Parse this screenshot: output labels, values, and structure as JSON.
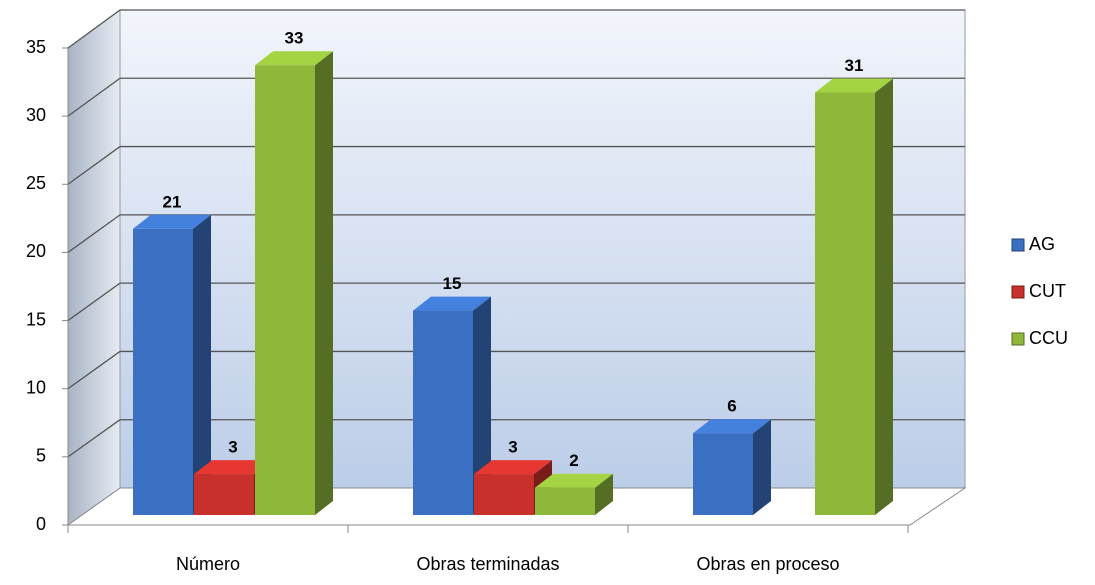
{
  "chart_data": {
    "type": "bar3d",
    "categories": [
      "Número",
      "Obras terminadas",
      "Obras en proceso"
    ],
    "series": [
      {
        "name": "AG",
        "color": "#3b6fc1",
        "values": [
          21,
          15,
          6
        ]
      },
      {
        "name": "CUT",
        "color": "#c8302c",
        "values": [
          3,
          3,
          null
        ]
      },
      {
        "name": "CCU",
        "color": "#8fb83a",
        "values": [
          33,
          2,
          31
        ]
      }
    ],
    "ylim": [
      0,
      35
    ],
    "yticks": [
      0,
      5,
      10,
      15,
      20,
      25,
      30,
      35
    ],
    "grid": true,
    "legend": "right"
  }
}
